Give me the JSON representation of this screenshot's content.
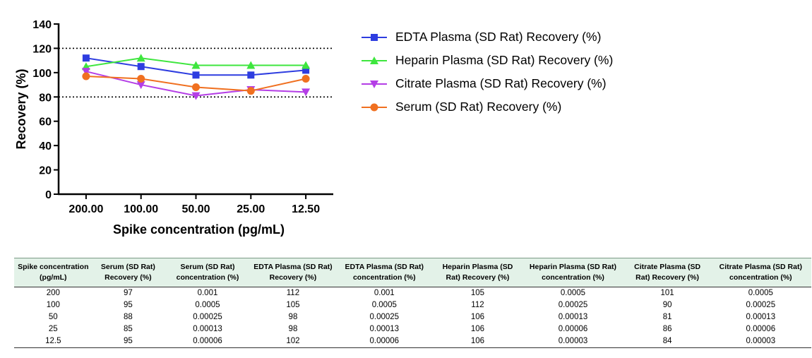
{
  "chart_data": {
    "type": "line",
    "title": "",
    "xlabel": "Spike concentration (pg/mL)",
    "ylabel": "Recovery (%)",
    "categories": [
      "200.00",
      "100.00",
      "50.00",
      "25.00",
      "12.50"
    ],
    "y_ticks": [
      "0",
      "20",
      "40",
      "60",
      "80",
      "100",
      "120",
      "140"
    ],
    "ylim": [
      0,
      140
    ],
    "reference_lines": [
      80,
      120
    ],
    "grid": false,
    "legend_position": "right",
    "series": [
      {
        "name": "EDTA Plasma (SD Rat) Recovery (%)",
        "values": [
          112,
          105,
          98,
          98,
          102
        ],
        "color": "#2e3de0",
        "marker": "square"
      },
      {
        "name": "Heparin Plasma (SD Rat) Recovery (%)",
        "values": [
          105,
          112,
          106,
          106,
          106
        ],
        "color": "#3ee63e",
        "marker": "triangle-up"
      },
      {
        "name": "Citrate Plasma (SD Rat) Recovery (%)",
        "values": [
          101,
          90,
          81,
          86,
          84
        ],
        "color": "#b43ee6",
        "marker": "triangle-down"
      },
      {
        "name": "Serum (SD Rat) Recovery (%)",
        "values": [
          97,
          95,
          88,
          85,
          95
        ],
        "color": "#f07020",
        "marker": "circle"
      }
    ]
  },
  "table": {
    "headers": [
      "Spike concentration (pg/mL)",
      "Serum (SD Rat) Recovery (%)",
      "Serum (SD Rat) concentration (%)",
      "EDTA Plasma (SD Rat) Recovery (%)",
      "EDTA Plasma (SD Rat) concentration (%)",
      "Heparin Plasma (SD Rat) Recovery (%)",
      "Heparin Plasma (SD Rat) concentration (%)",
      "Citrate Plasma (SD Rat) Recovery (%)",
      "Citrate Plasma (SD Rat) concentration (%)"
    ],
    "rows": [
      [
        "200",
        "97",
        "0.001",
        "112",
        "0.001",
        "105",
        "0.0005",
        "101",
        "0.0005"
      ],
      [
        "100",
        "95",
        "0.0005",
        "105",
        "0.0005",
        "112",
        "0.00025",
        "90",
        "0.00025"
      ],
      [
        "50",
        "88",
        "0.00025",
        "98",
        "0.00025",
        "106",
        "0.00013",
        "81",
        "0.00013"
      ],
      [
        "25",
        "85",
        "0.00013",
        "98",
        "0.00013",
        "106",
        "0.00006",
        "86",
        "0.00006"
      ],
      [
        "12.5",
        "95",
        "0.00006",
        "102",
        "0.00006",
        "106",
        "0.00003",
        "84",
        "0.00003"
      ]
    ]
  }
}
